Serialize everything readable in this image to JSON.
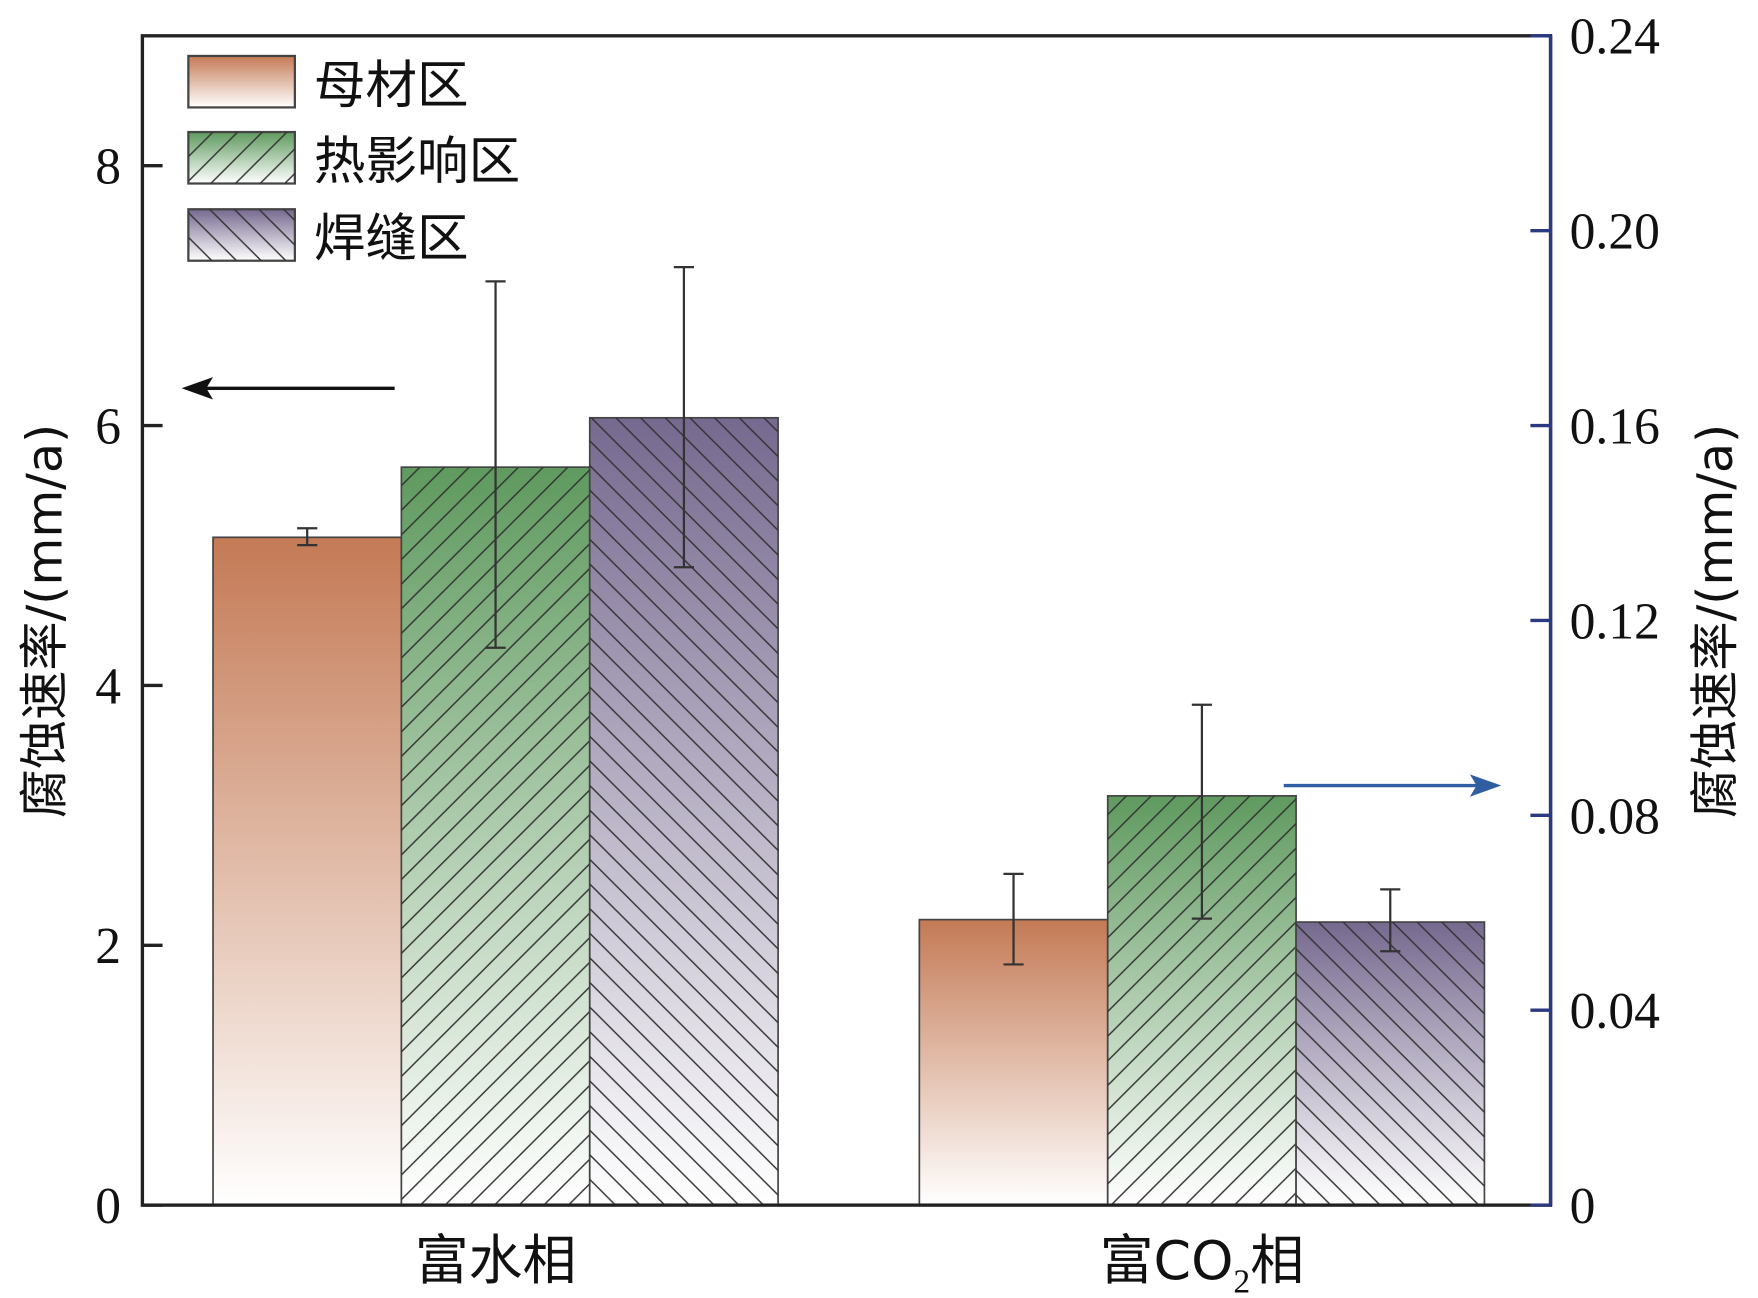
{
  "chart_data": {
    "type": "bar",
    "categories": [
      "富水相",
      "富CO₂相"
    ],
    "category_parts": [
      {
        "main": "富水相"
      },
      {
        "pre": "富CO",
        "sub": "2",
        "post": "相"
      }
    ],
    "series": [
      {
        "name": "母材区",
        "color": "#c47a55",
        "pattern": "none",
        "values": [
          5.14,
          0.0586
        ],
        "err_low": [
          5.08,
          0.0494
        ],
        "err_high": [
          5.21,
          0.068
        ]
      },
      {
        "name": "热影响区",
        "color": "#5f9a5f",
        "pattern": "forward-hatch",
        "values": [
          5.68,
          0.084
        ],
        "err_low": [
          4.29,
          0.0588
        ],
        "err_high": [
          7.11,
          0.1027
        ]
      },
      {
        "name": "焊缝区",
        "color": "#76698f",
        "pattern": "back-hatch",
        "values": [
          6.06,
          0.0581
        ],
        "err_low": [
          4.91,
          0.0521
        ],
        "err_high": [
          7.22,
          0.0648
        ]
      }
    ],
    "category_axis": [
      "left",
      "right"
    ],
    "ylabel": "腐蚀速率/(mm/a)",
    "ylabel_right": "腐蚀速率/(mm/a)",
    "ylim": [
      0,
      9
    ],
    "ylim_right": [
      0,
      0.24
    ],
    "yticks": [
      "0",
      "2",
      "4",
      "6",
      "8"
    ],
    "yticks_right": [
      "0",
      "0.04",
      "0.08",
      "0.12",
      "0.16",
      "0.20",
      "0.24"
    ],
    "right_axis_color": "#2b3a80",
    "arrow_right_color": "#2f5fa0",
    "legend_position": "top-left",
    "grid": false
  }
}
